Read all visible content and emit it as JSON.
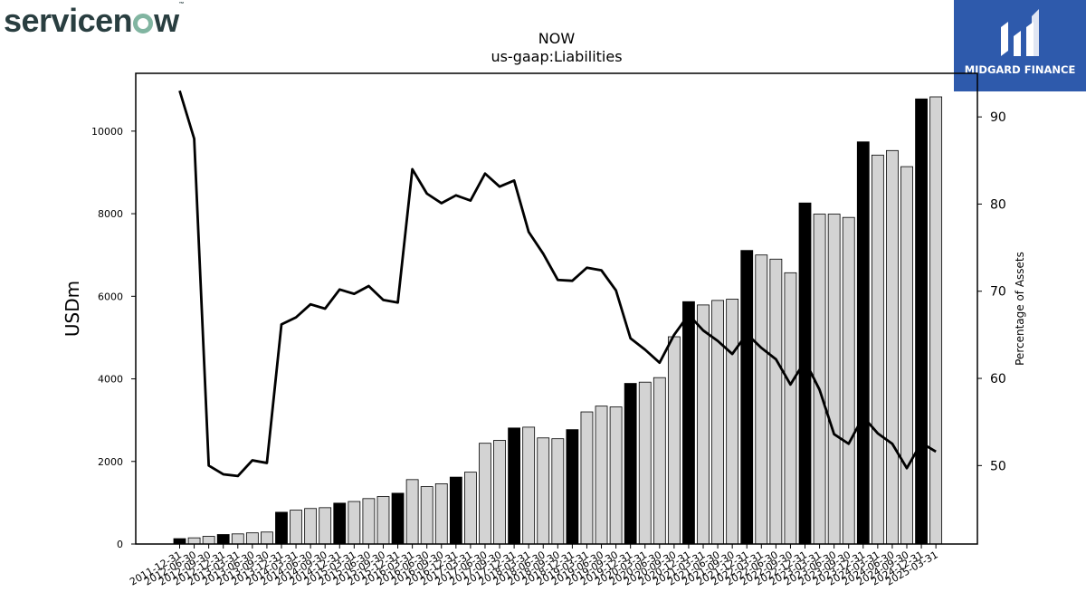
{
  "brand": {
    "logo_text": "servicenow",
    "logo_parts": [
      "servicen",
      "w"
    ],
    "trademark": "™"
  },
  "badge": {
    "text": "MIDGARD FINANCE",
    "color": "#2e5aac"
  },
  "chart_data": {
    "type": "bar",
    "title": "NOW",
    "subtitle": "us-gaap:Liabilities",
    "ylabel": "USDm",
    "y2label": "Percentage of Assets",
    "ylim": [
      0,
      11400
    ],
    "y2lim": [
      41,
      95
    ],
    "yticks": [
      0,
      2000,
      4000,
      6000,
      8000,
      10000
    ],
    "y2ticks": [
      50,
      60,
      70,
      80,
      90
    ],
    "grid": false,
    "categories": [
      "2011-12-31",
      "2012-06-30",
      "2012-09-30",
      "2012-12-31",
      "2013-03-31",
      "2013-06-30",
      "2013-09-30",
      "2013-12-31",
      "2014-03-31",
      "2014-06-30",
      "2014-09-30",
      "2014-12-31",
      "2015-03-31",
      "2015-06-30",
      "2015-09-30",
      "2015-12-31",
      "2016-03-31",
      "2016-06-30",
      "2016-09-30",
      "2016-12-31",
      "2017-03-31",
      "2017-06-30",
      "2017-09-30",
      "2017-12-31",
      "2018-03-31",
      "2018-06-30",
      "2018-09-30",
      "2018-12-31",
      "2019-03-31",
      "2019-06-30",
      "2019-09-30",
      "2019-12-31",
      "2020-03-31",
      "2020-06-30",
      "2020-09-30",
      "2020-12-31",
      "2021-03-31",
      "2021-06-30",
      "2021-09-30",
      "2021-12-31",
      "2022-03-31",
      "2022-06-30",
      "2022-09-30",
      "2022-12-31",
      "2023-03-31",
      "2023-06-30",
      "2023-09-30",
      "2023-12-31",
      "2024-03-31",
      "2024-06-30",
      "2024-09-30",
      "2024-12-31",
      "2025-03-31"
    ],
    "series": [
      {
        "values": [
          130,
          150,
          185,
          230,
          245,
          270,
          290,
          770,
          820,
          860,
          880,
          990,
          1030,
          1100,
          1150,
          1230,
          1560,
          1390,
          1460,
          1620,
          1740,
          2440,
          2510,
          2810,
          2830,
          2570,
          2550,
          2770,
          3200,
          3340,
          3320,
          3890,
          3920,
          4030,
          5020,
          5870,
          5790,
          5900,
          5930,
          7110,
          7000,
          6900,
          6570,
          8260,
          7990,
          7990,
          7910,
          9740,
          9420,
          9530,
          9140,
          10780,
          10830
        ],
        "highlight": [
          true,
          false,
          false,
          true,
          false,
          false,
          false,
          true,
          false,
          false,
          false,
          true,
          false,
          false,
          false,
          true,
          false,
          false,
          false,
          true,
          false,
          false,
          false,
          true,
          false,
          false,
          false,
          true,
          false,
          false,
          false,
          true,
          false,
          false,
          false,
          true,
          false,
          false,
          false,
          true,
          false,
          false,
          false,
          true,
          false,
          false,
          false,
          true,
          false,
          false,
          false,
          true,
          false
        ],
        "axis": "left"
      },
      {
        "values": [
          93,
          87.5,
          50,
          49,
          48.8,
          50.6,
          50.3,
          66.2,
          67,
          68.5,
          68,
          70.2,
          69.7,
          70.6,
          69,
          68.7,
          84,
          81.2,
          80.1,
          81,
          80.4,
          83.5,
          82,
          82.7,
          76.8,
          74.3,
          71.3,
          71.2,
          72.7,
          72.4,
          70.1,
          64.6,
          63.3,
          61.8,
          65,
          67.3,
          65.5,
          64.3,
          62.8,
          65.1,
          63.5,
          62.2,
          59.3,
          62,
          58.7,
          53.6,
          52.5,
          55.6,
          53.7,
          52.5,
          49.7,
          52.6,
          51.6
        ],
        "axis": "right"
      }
    ]
  }
}
